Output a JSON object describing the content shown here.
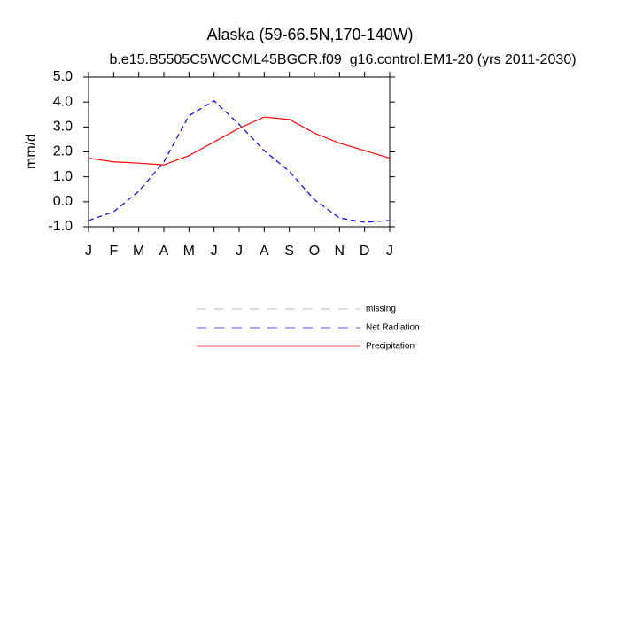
{
  "chart_data": {
    "type": "line",
    "title": "Alaska (59-66.5N,170-140W)",
    "subtitle": "b.e15.B5505C5WCCML45BGCR.f09_g16.control.EM1-20 (yrs 2011-2030)",
    "y_label": "mm/d",
    "categories": [
      "J",
      "F",
      "M",
      "A",
      "M",
      "J",
      "J",
      "A",
      "S",
      "O",
      "N",
      "D",
      "J"
    ],
    "ylim": [
      -1.0,
      5.0
    ],
    "yticks": [
      {
        "value": -1.0,
        "label": "-1.0"
      },
      {
        "value": 0.0,
        "label": "0.0"
      },
      {
        "value": 1.0,
        "label": "1.0"
      },
      {
        "value": 2.0,
        "label": "2.0"
      },
      {
        "value": 3.0,
        "label": "3.0"
      },
      {
        "value": 4.0,
        "label": "4.0"
      },
      {
        "value": 5.0,
        "label": "5.0"
      }
    ],
    "series": [
      {
        "name": "missing",
        "color": "#999999",
        "dashed": true,
        "values": [
          null,
          null,
          null,
          null,
          null,
          null,
          null,
          null,
          null,
          null,
          null,
          null,
          null
        ]
      },
      {
        "name": "Net Radiation",
        "color": "#0000ff",
        "dashed": true,
        "values": [
          -0.75,
          -0.4,
          0.42,
          1.6,
          3.45,
          4.05,
          3.1,
          2.05,
          1.22,
          0.08,
          -0.65,
          -0.82,
          -0.75
        ]
      },
      {
        "name": "Precipitation",
        "color": "#ff0000",
        "dashed": false,
        "values": [
          1.75,
          1.6,
          1.55,
          1.48,
          1.85,
          2.4,
          2.95,
          3.4,
          3.3,
          2.75,
          2.35,
          2.05,
          1.75
        ]
      }
    ]
  }
}
